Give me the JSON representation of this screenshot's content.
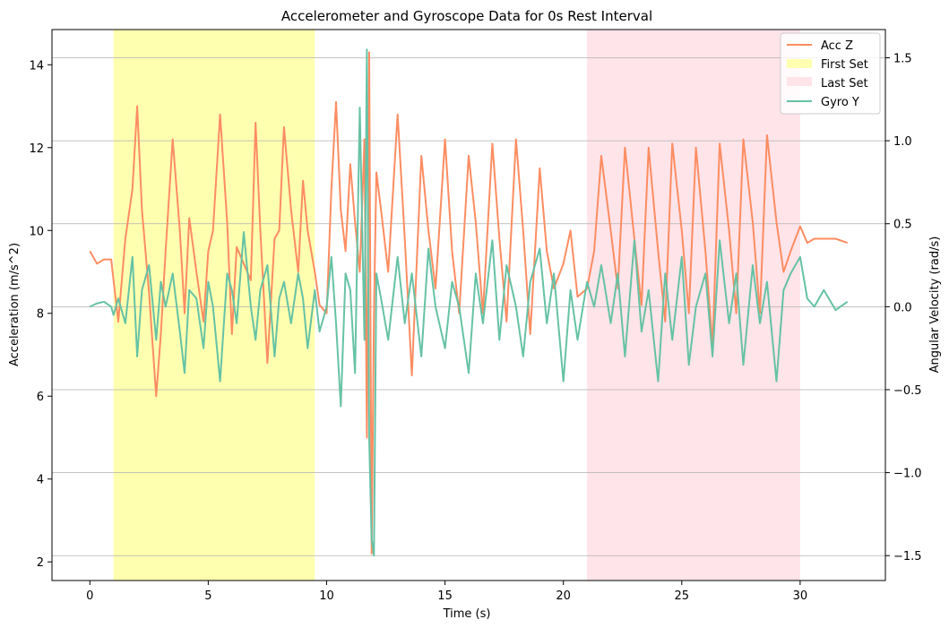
{
  "chart_data": {
    "type": "line",
    "title": "Accelerometer and Gyroscope Data for 0s Rest Interval",
    "xlabel": "Time (s)",
    "ylabel": "Acceleration (m/s^2)",
    "y2label": "Angular Velocity (rad/s)",
    "xlim": [
      -1.6,
      33.6
    ],
    "ylim": [
      1.55,
      14.85
    ],
    "y2lim": [
      -1.65,
      1.67
    ],
    "xticks": [
      0,
      5,
      10,
      15,
      20,
      25,
      30
    ],
    "yticks": [
      2,
      4,
      6,
      8,
      10,
      12,
      14
    ],
    "y2ticks": [
      -1.5,
      -1.0,
      -0.5,
      0.0,
      0.5,
      1.0,
      1.5
    ],
    "xtick_labels": [
      "0",
      "5",
      "10",
      "15",
      "20",
      "25",
      "30"
    ],
    "ytick_labels": [
      "2",
      "4",
      "6",
      "8",
      "10",
      "12",
      "14"
    ],
    "y2tick_labels": [
      "−1.5",
      "−1.0",
      "−0.5",
      "0.0",
      "0.5",
      "1.0",
      "1.5"
    ],
    "grid": "horizontal (secondary axis)",
    "legend_position": "top-right",
    "spans": [
      {
        "name": "First Set",
        "x_start": 1.0,
        "x_end": 9.5,
        "color": "#ffffb0"
      },
      {
        "name": "Last Set",
        "x_start": 21.0,
        "x_end": 30.0,
        "color": "#ffe4ea"
      }
    ],
    "series": [
      {
        "name": "Acc Z",
        "axis": "left",
        "color": "#fc8d62",
        "x": [
          0,
          0.3,
          0.6,
          0.9,
          1.0,
          1.2,
          1.5,
          1.8,
          2.0,
          2.2,
          2.5,
          2.8,
          3.0,
          3.2,
          3.5,
          3.8,
          4.0,
          4.2,
          4.5,
          4.8,
          5.0,
          5.2,
          5.5,
          5.8,
          6.0,
          6.2,
          6.5,
          6.8,
          7.0,
          7.2,
          7.5,
          7.8,
          8.0,
          8.2,
          8.5,
          8.8,
          9.0,
          9.2,
          9.5,
          9.7,
          10.0,
          10.2,
          10.4,
          10.6,
          10.8,
          11.0,
          11.2,
          11.4,
          11.6,
          11.7,
          11.8,
          11.9,
          12.0,
          12.1,
          12.3,
          12.6,
          13.0,
          13.3,
          13.6,
          14.0,
          14.3,
          14.6,
          15.0,
          15.3,
          15.6,
          16.0,
          16.3,
          16.6,
          17.0,
          17.3,
          17.6,
          18.0,
          18.3,
          18.6,
          19.0,
          19.3,
          19.6,
          20.0,
          20.3,
          20.6,
          21.0,
          21.3,
          21.6,
          22.0,
          22.3,
          22.6,
          23.0,
          23.3,
          23.6,
          24.0,
          24.3,
          24.6,
          25.0,
          25.3,
          25.6,
          26.0,
          26.3,
          26.6,
          27.0,
          27.3,
          27.6,
          28.0,
          28.3,
          28.6,
          29.0,
          29.3,
          29.6,
          30.0,
          30.3,
          30.6,
          31.0,
          31.5,
          32.0
        ],
        "values": [
          9.5,
          9.2,
          9.3,
          9.3,
          8.8,
          7.8,
          9.8,
          11.0,
          13.0,
          10.5,
          8.5,
          6.0,
          7.5,
          9.5,
          12.2,
          10.0,
          8.0,
          10.3,
          9.0,
          7.8,
          9.5,
          10.0,
          12.8,
          10.2,
          7.5,
          9.6,
          9.2,
          8.8,
          12.6,
          10.0,
          6.8,
          9.8,
          10.0,
          12.5,
          10.5,
          9.0,
          11.2,
          10.0,
          9.0,
          8.2,
          8.0,
          11.0,
          13.1,
          10.5,
          9.5,
          11.6,
          10.2,
          9.0,
          12.2,
          5.0,
          14.3,
          2.2,
          8.0,
          11.4,
          10.5,
          9.0,
          12.8,
          9.8,
          6.5,
          11.8,
          10.0,
          8.6,
          12.2,
          9.5,
          8.0,
          11.8,
          10.2,
          8.0,
          12.1,
          9.8,
          7.8,
          12.2,
          10.0,
          7.5,
          11.5,
          9.5,
          8.6,
          9.2,
          10.0,
          8.4,
          8.6,
          9.5,
          11.8,
          10.0,
          8.6,
          12.0,
          9.8,
          8.2,
          12.0,
          9.5,
          7.8,
          12.1,
          10.0,
          8.0,
          12.0,
          9.5,
          7.2,
          12.1,
          10.0,
          8.0,
          12.2,
          10.2,
          8.0,
          12.3,
          10.2,
          9.0,
          9.5,
          10.1,
          9.7,
          9.8,
          9.8,
          9.8,
          9.7
        ]
      },
      {
        "name": "Gyro Y",
        "axis": "right",
        "color": "#66c2a5",
        "x": [
          0,
          0.3,
          0.6,
          0.9,
          1.0,
          1.2,
          1.5,
          1.8,
          2.0,
          2.2,
          2.5,
          2.8,
          3.0,
          3.2,
          3.5,
          3.8,
          4.0,
          4.2,
          4.5,
          4.8,
          5.0,
          5.2,
          5.5,
          5.8,
          6.0,
          6.2,
          6.5,
          6.8,
          7.0,
          7.2,
          7.5,
          7.8,
          8.0,
          8.2,
          8.5,
          8.8,
          9.0,
          9.2,
          9.5,
          9.7,
          10.0,
          10.2,
          10.4,
          10.6,
          10.8,
          11.0,
          11.2,
          11.4,
          11.6,
          11.7,
          11.8,
          11.9,
          12.0,
          12.1,
          12.3,
          12.6,
          13.0,
          13.3,
          13.6,
          14.0,
          14.3,
          14.6,
          15.0,
          15.3,
          15.6,
          16.0,
          16.3,
          16.6,
          17.0,
          17.3,
          17.6,
          18.0,
          18.3,
          18.6,
          19.0,
          19.3,
          19.6,
          20.0,
          20.3,
          20.6,
          21.0,
          21.3,
          21.6,
          22.0,
          22.3,
          22.6,
          23.0,
          23.3,
          23.6,
          24.0,
          24.3,
          24.6,
          25.0,
          25.3,
          25.6,
          26.0,
          26.3,
          26.6,
          27.0,
          27.3,
          27.6,
          28.0,
          28.3,
          28.6,
          29.0,
          29.3,
          29.6,
          30.0,
          30.3,
          30.6,
          31.0,
          31.5,
          32.0
        ],
        "values": [
          0.0,
          0.02,
          0.03,
          0.0,
          -0.05,
          0.05,
          -0.1,
          0.3,
          -0.3,
          0.1,
          0.25,
          -0.2,
          0.15,
          0.0,
          0.2,
          -0.15,
          -0.4,
          0.1,
          0.05,
          -0.25,
          0.15,
          0.0,
          -0.45,
          0.2,
          0.1,
          -0.1,
          0.45,
          0.0,
          -0.2,
          0.1,
          0.25,
          -0.3,
          0.05,
          0.15,
          -0.1,
          0.2,
          0.05,
          -0.25,
          0.1,
          -0.15,
          0.0,
          0.3,
          -0.1,
          -0.6,
          0.2,
          0.1,
          -0.4,
          1.2,
          -0.2,
          1.55,
          -0.8,
          -1.4,
          -1.5,
          0.2,
          0.05,
          -0.2,
          0.3,
          -0.1,
          0.2,
          -0.3,
          0.35,
          0.0,
          -0.25,
          0.15,
          0.0,
          -0.4,
          0.2,
          -0.1,
          0.4,
          -0.2,
          0.25,
          0.0,
          -0.3,
          0.15,
          0.35,
          -0.1,
          0.2,
          -0.45,
          0.1,
          -0.2,
          0.15,
          0.0,
          0.25,
          -0.1,
          0.2,
          -0.3,
          0.4,
          -0.15,
          0.1,
          -0.45,
          0.2,
          -0.2,
          0.3,
          -0.35,
          0.0,
          0.2,
          -0.3,
          0.4,
          -0.1,
          0.2,
          -0.35,
          0.25,
          -0.1,
          0.15,
          -0.45,
          0.1,
          0.2,
          0.3,
          0.05,
          0.0,
          0.1,
          -0.02,
          0.03
        ]
      }
    ]
  }
}
